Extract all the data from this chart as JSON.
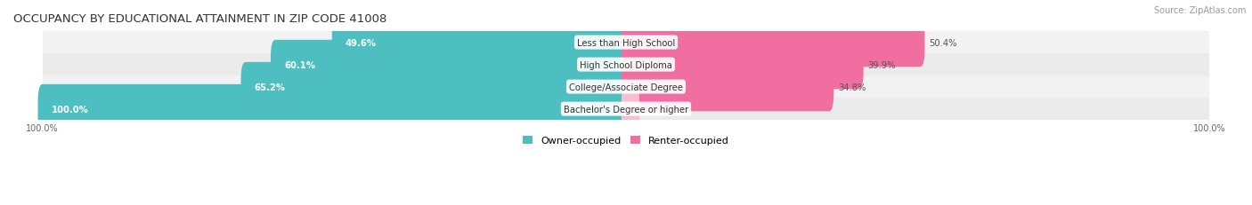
{
  "title": "OCCUPANCY BY EDUCATIONAL ATTAINMENT IN ZIP CODE 41008",
  "source": "Source: ZipAtlas.com",
  "categories": [
    "Less than High School",
    "High School Diploma",
    "College/Associate Degree",
    "Bachelor's Degree or higher"
  ],
  "owner_pct": [
    49.6,
    60.1,
    65.2,
    100.0
  ],
  "renter_pct": [
    50.4,
    39.9,
    34.8,
    0.0
  ],
  "owner_color": "#4DBFC0",
  "renter_color_normal": "#F06EA0",
  "renter_color_light": "#F5C0D0",
  "row_bg_even": "#F2F2F2",
  "row_bg_odd": "#EBEBEB",
  "title_fontsize": 9.5,
  "label_fontsize": 7.2,
  "pct_fontsize": 7.2,
  "tick_fontsize": 7,
  "legend_fontsize": 8,
  "source_fontsize": 7,
  "bar_height": 0.62,
  "figsize": [
    14.06,
    2.32
  ],
  "dpi": 100
}
